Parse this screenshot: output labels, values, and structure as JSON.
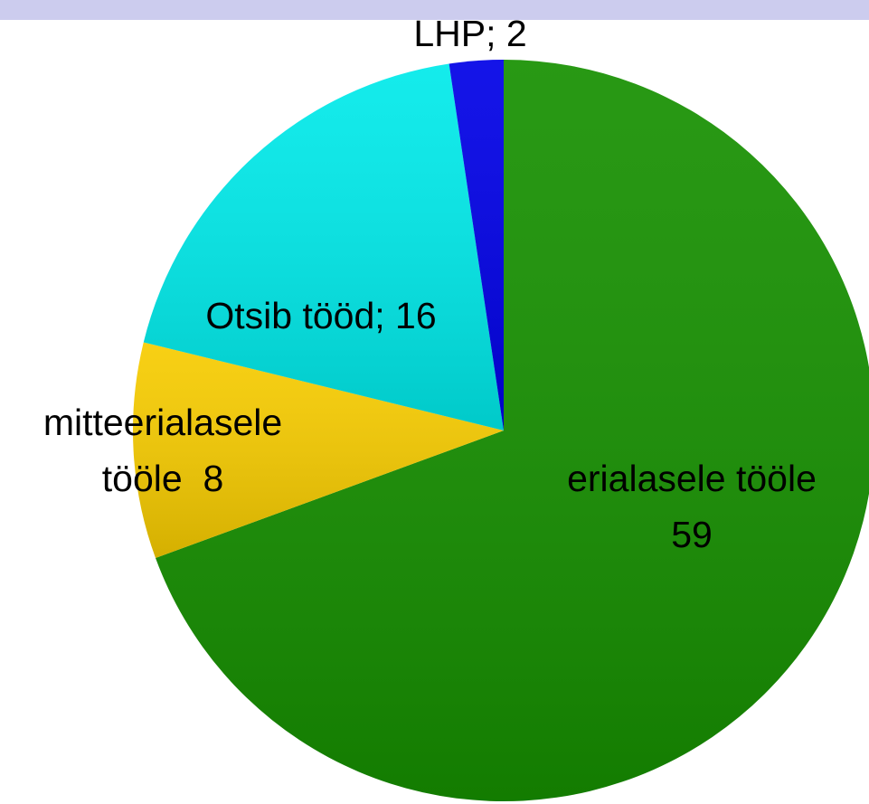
{
  "chart_data": {
    "type": "pie",
    "values": [
      59,
      8,
      16,
      2
    ],
    "value_labels": [
      [
        "erialasele tööle",
        "59"
      ],
      [
        "mitteerialasele",
        "tööle  8"
      ],
      [
        "Otsib tööd; 16"
      ],
      [
        "LHP; 2"
      ]
    ],
    "colors": [
      "#169000",
      "#f7cc00",
      "#00eaea",
      "#0000e6"
    ]
  }
}
